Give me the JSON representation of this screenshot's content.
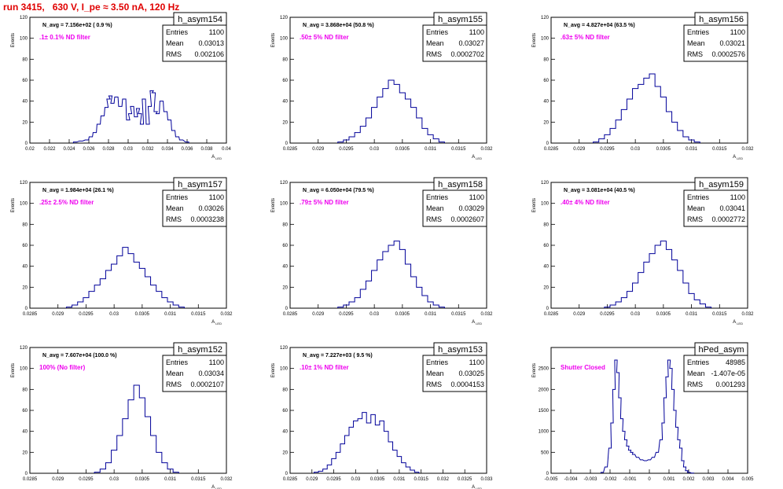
{
  "header": {
    "title": "run 3415,   630 V, I_pe ≈ 3.50 nA, 120 Hz"
  },
  "colors": {
    "hist": "#000099",
    "filter_label": "#ee00ee",
    "title": "#e00000"
  },
  "stat_labels": {
    "entries": "Entries",
    "mean": "Mean",
    "rms": "RMS"
  },
  "chart_data": [
    {
      "type": "bar",
      "title": "h_asym154",
      "navg": "N_avg = 7.156e+02 ( 0.9 %)",
      "filter": ".1± 0.1% ND filter",
      "entries": "1100",
      "mean": "0.03013",
      "rms": "0.002106",
      "xlabel": "A_LED",
      "ylabel": "Events",
      "xlim": [
        0.02,
        0.04
      ],
      "ylim": [
        0,
        120
      ],
      "xticks": [
        0.02,
        0.022,
        0.024,
        0.026,
        0.028,
        0.03,
        0.032,
        0.034,
        0.036,
        0.038,
        0.04
      ],
      "xtick_labels": [
        "0.02",
        "0.022",
        "0.024",
        "0.026",
        "0.028",
        "0.03",
        "0.032",
        "0.034",
        "0.036",
        "0.038",
        "0.04"
      ],
      "yticks": [
        0,
        20,
        40,
        60,
        80,
        100,
        120
      ],
      "x": [
        0.0246,
        0.0252,
        0.0258,
        0.0262,
        0.0266,
        0.027,
        0.0274,
        0.0278,
        0.028,
        0.0282,
        0.0284,
        0.0288,
        0.0292,
        0.0296,
        0.03,
        0.0302,
        0.0304,
        0.0308,
        0.031,
        0.0312,
        0.0314,
        0.0316,
        0.032,
        0.0322,
        0.0324,
        0.0326,
        0.0328,
        0.033,
        0.0334,
        0.0338,
        0.0342,
        0.0346,
        0.035,
        0.0354,
        0.036
      ],
      "values": [
        1,
        2,
        3,
        6,
        10,
        18,
        26,
        34,
        42,
        45,
        38,
        44,
        35,
        42,
        22,
        28,
        35,
        25,
        33,
        28,
        18,
        42,
        18,
        35,
        50,
        48,
        30,
        28,
        40,
        30,
        22,
        12,
        6,
        3,
        1
      ]
    },
    {
      "type": "bar",
      "title": "h_asym155",
      "navg": "N_avg = 3.868e+04 (50.8 %)",
      "filter": ".50± 5% ND filter",
      "entries": "1100",
      "mean": "0.03027",
      "rms": "0.0002702",
      "xlabel": "A_LED",
      "ylabel": "Events",
      "xlim": [
        0.0285,
        0.032
      ],
      "ylim": [
        0,
        120
      ],
      "xticks": [
        0.0285,
        0.029,
        0.0295,
        0.03,
        0.0305,
        0.031,
        0.0315,
        0.032
      ],
      "xtick_labels": [
        "0.0285",
        "0.029",
        "0.0295",
        "0.03",
        "0.0305",
        "0.031",
        "0.0315",
        "0.032"
      ],
      "yticks": [
        0,
        20,
        40,
        60,
        80,
        100,
        120
      ],
      "x": [
        0.0294,
        0.0295,
        0.0296,
        0.0297,
        0.0298,
        0.0299,
        0.03,
        0.0301,
        0.0302,
        0.0303,
        0.0304,
        0.0305,
        0.0306,
        0.0307,
        0.0308,
        0.0309,
        0.031,
        0.0311,
        0.0312
      ],
      "values": [
        1,
        3,
        6,
        10,
        16,
        24,
        34,
        44,
        52,
        60,
        56,
        48,
        42,
        34,
        24,
        14,
        8,
        4,
        1
      ]
    },
    {
      "type": "bar",
      "title": "h_asym156",
      "navg": "N_avg = 4.827e+04 (63.5 %)",
      "filter": ".63± 5% ND filter",
      "entries": "1100",
      "mean": "0.03021",
      "rms": "0.0002576",
      "xlabel": "A_LED",
      "ylabel": "Events",
      "xlim": [
        0.0285,
        0.032
      ],
      "ylim": [
        0,
        120
      ],
      "xticks": [
        0.0285,
        0.029,
        0.0295,
        0.03,
        0.0305,
        0.031,
        0.0315,
        0.032
      ],
      "xtick_labels": [
        "0.0285",
        "0.029",
        "0.0295",
        "0.03",
        "0.0305",
        "0.031",
        "0.0315",
        "0.032"
      ],
      "yticks": [
        0,
        20,
        40,
        60,
        80,
        100,
        120
      ],
      "x": [
        0.0293,
        0.0294,
        0.0295,
        0.0296,
        0.0297,
        0.0298,
        0.0299,
        0.03,
        0.0301,
        0.0302,
        0.0303,
        0.0304,
        0.0305,
        0.0306,
        0.0307,
        0.0308,
        0.0309,
        0.031,
        0.0311
      ],
      "values": [
        1,
        4,
        8,
        14,
        22,
        32,
        42,
        52,
        56,
        62,
        66,
        54,
        44,
        30,
        20,
        12,
        6,
        3,
        1
      ]
    },
    {
      "type": "bar",
      "title": "h_asym157",
      "navg": "N_avg = 1.984e+04 (26.1 %)",
      "filter": ".25± 2.5% ND filter",
      "entries": "1100",
      "mean": "0.03026",
      "rms": "0.0003238",
      "xlabel": "A_LED",
      "ylabel": "Events",
      "xlim": [
        0.0285,
        0.032
      ],
      "ylim": [
        0,
        120
      ],
      "xticks": [
        0.0285,
        0.029,
        0.0295,
        0.03,
        0.0305,
        0.031,
        0.0315,
        0.032
      ],
      "xtick_labels": [
        "0.0285",
        "0.029",
        "0.0295",
        "0.03",
        "0.0305",
        "0.031",
        "0.0315",
        "0.032"
      ],
      "yticks": [
        0,
        20,
        40,
        60,
        80,
        100,
        120
      ],
      "x": [
        0.0292,
        0.0293,
        0.0294,
        0.0295,
        0.0296,
        0.0297,
        0.0298,
        0.0299,
        0.03,
        0.0301,
        0.0302,
        0.0303,
        0.0304,
        0.0305,
        0.0306,
        0.0307,
        0.0308,
        0.0309,
        0.031,
        0.0311,
        0.0312
      ],
      "values": [
        1,
        3,
        6,
        10,
        16,
        22,
        28,
        36,
        42,
        50,
        58,
        52,
        44,
        38,
        30,
        22,
        16,
        10,
        6,
        3,
        1
      ]
    },
    {
      "type": "bar",
      "title": "h_asym158",
      "navg": "N_avg = 6.050e+04 (79.5 %)",
      "filter": ".79± 5% ND filter",
      "entries": "1100",
      "mean": "0.03029",
      "rms": "0.0002607",
      "xlabel": "A_LED",
      "ylabel": "Events",
      "xlim": [
        0.0285,
        0.032
      ],
      "ylim": [
        0,
        120
      ],
      "xticks": [
        0.0285,
        0.029,
        0.0295,
        0.03,
        0.0305,
        0.031,
        0.0315,
        0.032
      ],
      "xtick_labels": [
        "0.0285",
        "0.029",
        "0.0295",
        "0.03",
        "0.0305",
        "0.031",
        "0.0315",
        "0.032"
      ],
      "yticks": [
        0,
        20,
        40,
        60,
        80,
        100,
        120
      ],
      "x": [
        0.0294,
        0.0295,
        0.0296,
        0.0297,
        0.0298,
        0.0299,
        0.03,
        0.0301,
        0.0302,
        0.0303,
        0.0304,
        0.0305,
        0.0306,
        0.0307,
        0.0308,
        0.0309,
        0.031,
        0.0311,
        0.0312
      ],
      "values": [
        1,
        3,
        6,
        10,
        18,
        26,
        36,
        46,
        54,
        60,
        64,
        56,
        42,
        30,
        20,
        12,
        6,
        3,
        1
      ]
    },
    {
      "type": "bar",
      "title": "h_asym159",
      "navg": "N_avg = 3.081e+04 (40.5 %)",
      "filter": ".40± 4% ND filter",
      "entries": "1100",
      "mean": "0.03041",
      "rms": "0.0002772",
      "xlabel": "A_LED",
      "ylabel": "Events",
      "xlim": [
        0.0285,
        0.032
      ],
      "ylim": [
        0,
        120
      ],
      "xticks": [
        0.0285,
        0.029,
        0.0295,
        0.03,
        0.0305,
        0.031,
        0.0315,
        0.032
      ],
      "xtick_labels": [
        "0.0285",
        "0.029",
        "0.0295",
        "0.03",
        "0.0305",
        "0.031",
        "0.0315",
        "0.032"
      ],
      "yticks": [
        0,
        20,
        40,
        60,
        80,
        100,
        120
      ],
      "x": [
        0.0295,
        0.0296,
        0.0297,
        0.0298,
        0.0299,
        0.03,
        0.0301,
        0.0302,
        0.0303,
        0.0304,
        0.0305,
        0.0306,
        0.0307,
        0.0308,
        0.0309,
        0.031,
        0.0311,
        0.0312,
        0.0313
      ],
      "values": [
        1,
        3,
        6,
        10,
        16,
        24,
        34,
        44,
        52,
        60,
        64,
        56,
        46,
        36,
        24,
        14,
        8,
        4,
        1
      ]
    },
    {
      "type": "bar",
      "title": "h_asym152",
      "navg": "N_avg = 7.607e+04 (100.0 %)",
      "filter": "100% (No filter)",
      "entries": "1100",
      "mean": "0.03034",
      "rms": "0.0002107",
      "xlabel": "A_LED",
      "ylabel": "Events",
      "xlim": [
        0.0285,
        0.032
      ],
      "ylim": [
        0,
        120
      ],
      "xticks": [
        0.0285,
        0.029,
        0.0295,
        0.03,
        0.0305,
        0.031,
        0.0315,
        0.032
      ],
      "xtick_labels": [
        "0.0285",
        "0.029",
        "0.0295",
        "0.03",
        "0.0305",
        "0.031",
        "0.0315",
        "0.032"
      ],
      "yticks": [
        0,
        20,
        40,
        60,
        80,
        100,
        120
      ],
      "x": [
        0.0297,
        0.0298,
        0.0299,
        0.03,
        0.0301,
        0.0302,
        0.0303,
        0.0304,
        0.0305,
        0.0306,
        0.0307,
        0.0308,
        0.0309,
        0.031,
        0.0311
      ],
      "values": [
        1,
        4,
        10,
        22,
        36,
        52,
        70,
        84,
        72,
        54,
        36,
        20,
        10,
        4,
        1
      ]
    },
    {
      "type": "bar",
      "title": "h_asym153",
      "navg": "N_avg = 7.227e+03 ( 9.5 %)",
      "filter": ".10± 1% ND filter",
      "entries": "1100",
      "mean": "0.03025",
      "rms": "0.0004153",
      "xlabel": "A_LED",
      "ylabel": "Events",
      "xlim": [
        0.0285,
        0.033
      ],
      "ylim": [
        0,
        120
      ],
      "xticks": [
        0.0285,
        0.029,
        0.0295,
        0.03,
        0.0305,
        0.031,
        0.0315,
        0.032,
        0.0325,
        0.033
      ],
      "xtick_labels": [
        "0.0285",
        "0.029",
        "0.0295",
        "0.03",
        "0.0305",
        "0.031",
        "0.0315",
        "0.032",
        "0.0325",
        "0.033"
      ],
      "yticks": [
        0,
        20,
        40,
        60,
        80,
        100,
        120
      ],
      "x": [
        0.0291,
        0.0292,
        0.0293,
        0.0294,
        0.0295,
        0.0296,
        0.0297,
        0.0298,
        0.0299,
        0.03,
        0.0301,
        0.0302,
        0.0303,
        0.0304,
        0.0305,
        0.0306,
        0.0307,
        0.0308,
        0.0309,
        0.031,
        0.0311,
        0.0312,
        0.0313,
        0.0314
      ],
      "values": [
        1,
        2,
        4,
        8,
        14,
        20,
        28,
        36,
        44,
        50,
        52,
        58,
        48,
        56,
        46,
        50,
        40,
        30,
        22,
        16,
        10,
        6,
        3,
        1
      ]
    },
    {
      "type": "bar",
      "title": "hPed_asym",
      "navg": "",
      "filter": "Shutter Closed",
      "entries": "48985",
      "mean": "-1.407e-05",
      "rms": "0.001293",
      "xlabel": "",
      "ylabel": "Events",
      "xlim": [
        -0.005,
        0.005
      ],
      "ylim": [
        0,
        3000
      ],
      "xticks": [
        -0.005,
        -0.004,
        -0.003,
        -0.002,
        -0.001,
        0,
        0.001,
        0.002,
        0.003,
        0.004,
        0.005
      ],
      "xtick_labels": [
        "-0.005",
        "-0.004",
        "-0.003",
        "-0.002",
        "-0.001",
        "0",
        "0.001",
        "0.002",
        "0.003",
        "0.004",
        "0.005"
      ],
      "yticks": [
        0,
        500,
        1000,
        1500,
        2000,
        2500
      ],
      "x": [
        -0.0024,
        -0.0022,
        -0.002,
        -0.0019,
        -0.0018,
        -0.0017,
        -0.0016,
        -0.0015,
        -0.0014,
        -0.0013,
        -0.0012,
        -0.0011,
        -0.001,
        -0.0009,
        -0.0008,
        -0.0006,
        -0.0004,
        -0.0002,
        0,
        0.0002,
        0.0004,
        0.0006,
        0.0007,
        0.0008,
        0.0009,
        0.001,
        0.0011,
        0.0012,
        0.0013,
        0.0014,
        0.0015,
        0.0016,
        0.0017,
        0.0018,
        0.0019,
        0.002,
        0.0022
      ],
      "values": [
        20,
        150,
        600,
        1200,
        2000,
        2700,
        2400,
        1800,
        1300,
        1000,
        800,
        650,
        550,
        500,
        450,
        380,
        320,
        300,
        320,
        380,
        500,
        800,
        1200,
        1800,
        2300,
        2700,
        2500,
        2000,
        1500,
        1100,
        800,
        600,
        300,
        150,
        60,
        20,
        5
      ]
    }
  ]
}
